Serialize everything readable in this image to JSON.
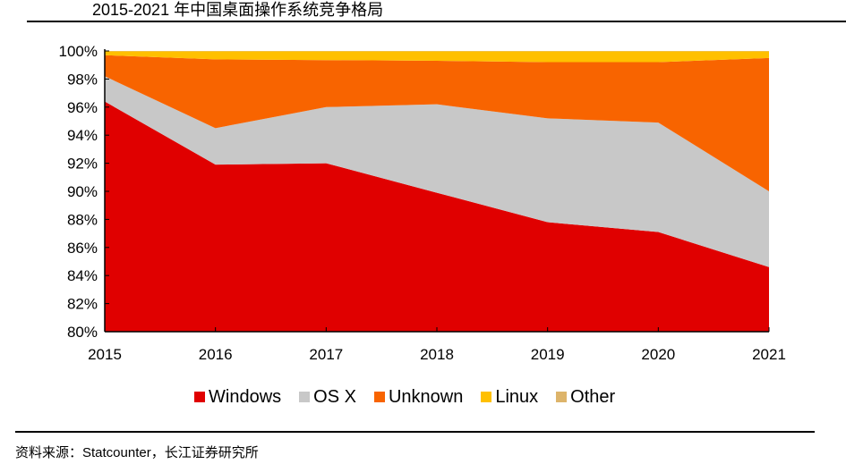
{
  "header": {
    "title": "2015-2021 年中国桌面操作系统竞争格局"
  },
  "footer": {
    "source": "资料来源：Statcounter，长江证券研究所"
  },
  "chart_data": {
    "type": "area",
    "stacked": true,
    "title": "2015-2021 年中国桌面操作系统竞争格局",
    "xlabel": "",
    "ylabel": "",
    "x": [
      "2015",
      "2016",
      "2017",
      "2018",
      "2019",
      "2020",
      "2021"
    ],
    "ylim": [
      80,
      100
    ],
    "yticks": [
      80,
      82,
      84,
      86,
      88,
      90,
      92,
      94,
      96,
      98,
      100
    ],
    "ytick_labels": [
      "80%",
      "82%",
      "84%",
      "86%",
      "88%",
      "90%",
      "92%",
      "94%",
      "96%",
      "98%",
      "100%"
    ],
    "grid": false,
    "legend_position": "bottom",
    "series": [
      {
        "name": "Windows",
        "color": "#E00000",
        "values": [
          96.4,
          91.9,
          92.0,
          89.9,
          87.8,
          87.1,
          84.6
        ]
      },
      {
        "name": "OS X",
        "color": "#C8C8C8",
        "values": [
          1.8,
          2.6,
          4.0,
          6.3,
          7.4,
          7.8,
          5.4
        ]
      },
      {
        "name": "Unknown",
        "color": "#F86400",
        "values": [
          1.5,
          4.9,
          3.35,
          3.1,
          4.0,
          4.3,
          9.5
        ]
      },
      {
        "name": "Linux",
        "color": "#FFC000",
        "values": [
          0.28,
          0.58,
          0.63,
          0.68,
          0.78,
          0.78,
          0.48
        ]
      },
      {
        "name": "Other",
        "color": "#DDB46A",
        "values": [
          0.02,
          0.02,
          0.02,
          0.02,
          0.02,
          0.02,
          0.02
        ]
      }
    ]
  }
}
